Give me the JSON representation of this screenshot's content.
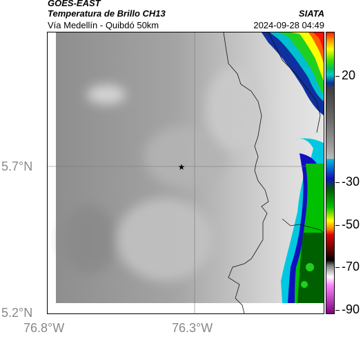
{
  "header": {
    "satellite": "GOES-EAST",
    "product": "Temperatura de Brillo CH13",
    "route": "Vía Medellín - Quibdó 50km",
    "organization": "SIATA",
    "timestamp": "2024-09-28 04:49"
  },
  "map": {
    "lat_labels": [
      "5.7°N",
      "5.2°N"
    ],
    "lon_labels": [
      "76.8°W",
      "76.3°W"
    ],
    "marker_icon": "star-icon"
  },
  "colorbar": {
    "labels": [
      "20",
      "-30",
      "-50",
      "-70",
      "-90"
    ]
  }
}
